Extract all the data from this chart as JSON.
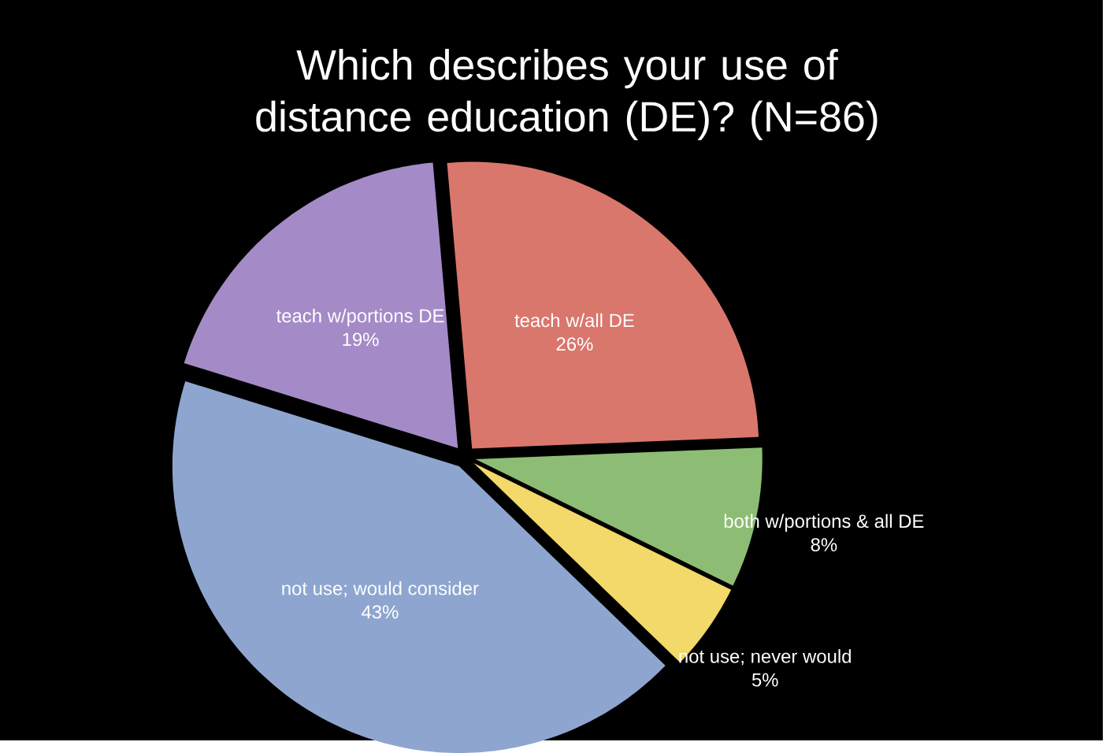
{
  "chart_data": {
    "type": "pie",
    "title": "Which describes your use of distance education (DE)? (N=86)",
    "categories": [
      "teach w/all DE",
      "both w/portions & all DE",
      "not use; never would",
      "not use; would consider",
      "teach w/portions DE"
    ],
    "values": [
      26,
      8,
      5,
      43,
      19
    ],
    "value_labels": [
      "26%",
      "8%",
      "5%",
      "43%",
      "19%"
    ],
    "colors": [
      "#d9776d",
      "#8dbd74",
      "#f3d86a",
      "#8ea6cf",
      "#a48bc7"
    ]
  }
}
